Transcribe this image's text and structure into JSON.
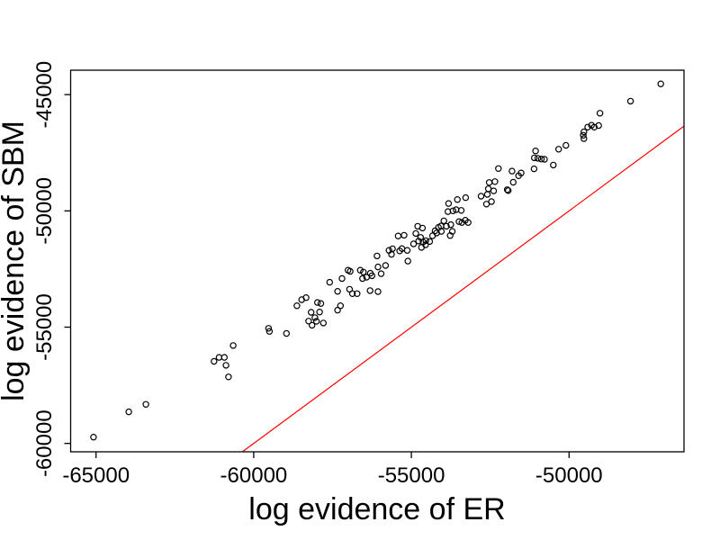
{
  "figure": {
    "background": "#ffffff",
    "axis_color": "#000000",
    "text_color": "#000000"
  },
  "chart_data": {
    "type": "scatter",
    "title": "",
    "xlabel": "log evidence of ER",
    "ylabel": "log evidence of SBM",
    "xlim": [
      -65805,
      -46355
    ],
    "ylim": [
      -60360,
      -43950
    ],
    "x_ticks": [
      -65000,
      -60000,
      -55000,
      -50000
    ],
    "x_tick_labels": [
      "-65000",
      "-60000",
      "-55000",
      "-50000"
    ],
    "y_ticks": [
      -60000,
      -55000,
      -50000,
      -45000
    ],
    "y_tick_labels": [
      "-60000",
      "-55000",
      "-50000",
      "-45000"
    ],
    "grid": false,
    "legend": null,
    "marker": {
      "shape": "open-circle",
      "stroke": "#000000"
    },
    "reference_line": {
      "equation": "y = x",
      "color": "#FF0000"
    },
    "points": [
      [
        -65080,
        -59730
      ],
      [
        -63960,
        -58640
      ],
      [
        -63420,
        -58320
      ],
      [
        -61260,
        -56470
      ],
      [
        -61100,
        -56300
      ],
      [
        -60930,
        -56300
      ],
      [
        -60880,
        -56640
      ],
      [
        -60800,
        -57140
      ],
      [
        -60650,
        -55790
      ],
      [
        -59530,
        -55050
      ],
      [
        -59500,
        -55180
      ],
      [
        -58960,
        -55270
      ],
      [
        -58630,
        -54080
      ],
      [
        -58480,
        -53820
      ],
      [
        -58340,
        -53730
      ],
      [
        -57980,
        -53940
      ],
      [
        -57870,
        -53980
      ],
      [
        -58180,
        -54360
      ],
      [
        -57910,
        -54350
      ],
      [
        -58060,
        -54590
      ],
      [
        -58260,
        -54740
      ],
      [
        -58010,
        -54750
      ],
      [
        -57790,
        -54820
      ],
      [
        -58150,
        -54920
      ],
      [
        -57590,
        -53070
      ],
      [
        -57340,
        -53460
      ],
      [
        -57200,
        -52910
      ],
      [
        -57340,
        -54270
      ],
      [
        -57250,
        -54080
      ],
      [
        -57010,
        -52550
      ],
      [
        -56940,
        -52600
      ],
      [
        -56870,
        -53560
      ],
      [
        -56720,
        -53560
      ],
      [
        -56620,
        -52550
      ],
      [
        -56520,
        -52630
      ],
      [
        -56550,
        -52910
      ],
      [
        -56420,
        -52850
      ],
      [
        -56300,
        -52680
      ],
      [
        -56250,
        -52790
      ],
      [
        -56310,
        -53430
      ],
      [
        -56060,
        -53470
      ],
      [
        -56960,
        -53370
      ],
      [
        -56090,
        -51940
      ],
      [
        -56060,
        -52410
      ],
      [
        -55960,
        -52700
      ],
      [
        -55820,
        -52350
      ],
      [
        -55710,
        -51700
      ],
      [
        -55600,
        -51630
      ],
      [
        -55630,
        -51870
      ],
      [
        -55420,
        -51080
      ],
      [
        -55230,
        -51050
      ],
      [
        -55370,
        -51720
      ],
      [
        -55300,
        -51620
      ],
      [
        -55130,
        -51700
      ],
      [
        -55110,
        -52160
      ],
      [
        -54930,
        -51420
      ],
      [
        -54860,
        -50970
      ],
      [
        -54800,
        -50660
      ],
      [
        -54650,
        -50740
      ],
      [
        -54770,
        -51300
      ],
      [
        -54710,
        -51140
      ],
      [
        -54630,
        -51340
      ],
      [
        -54540,
        -51280
      ],
      [
        -54420,
        -51320
      ],
      [
        -54550,
        -51460
      ],
      [
        -54680,
        -51570
      ],
      [
        -54330,
        -51070
      ],
      [
        -54250,
        -50860
      ],
      [
        -54200,
        -50950
      ],
      [
        -54140,
        -50710
      ],
      [
        -54060,
        -50650
      ],
      [
        -54050,
        -50880
      ],
      [
        -53970,
        -50430
      ],
      [
        -53890,
        -50660
      ],
      [
        -53820,
        -49680
      ],
      [
        -53840,
        -50030
      ],
      [
        -53680,
        -50000
      ],
      [
        -53580,
        -49950
      ],
      [
        -53420,
        -49980
      ],
      [
        -53750,
        -50590
      ],
      [
        -53490,
        -50460
      ],
      [
        -53400,
        -50500
      ],
      [
        -53290,
        -50400
      ],
      [
        -53200,
        -50500
      ],
      [
        -53770,
        -51060
      ],
      [
        -53700,
        -50880
      ],
      [
        -53540,
        -49510
      ],
      [
        -53280,
        -49430
      ],
      [
        -52790,
        -49370
      ],
      [
        -52590,
        -49290
      ],
      [
        -52620,
        -49710
      ],
      [
        -52460,
        -49600
      ],
      [
        -52560,
        -49050
      ],
      [
        -52390,
        -49140
      ],
      [
        -52530,
        -48780
      ],
      [
        -52350,
        -48740
      ],
      [
        -52240,
        -48180
      ],
      [
        -51960,
        -49090
      ],
      [
        -51930,
        -49130
      ],
      [
        -51810,
        -48290
      ],
      [
        -51770,
        -48770
      ],
      [
        -51600,
        -48490
      ],
      [
        -51520,
        -48370
      ],
      [
        -51110,
        -48190
      ],
      [
        -51100,
        -47720
      ],
      [
        -50990,
        -47740
      ],
      [
        -50880,
        -47770
      ],
      [
        -50780,
        -47780
      ],
      [
        -51060,
        -47420
      ],
      [
        -50500,
        -48030
      ],
      [
        -50330,
        -47350
      ],
      [
        -50100,
        -47180
      ],
      [
        -49550,
        -46750
      ],
      [
        -49530,
        -46600
      ],
      [
        -49530,
        -46890
      ],
      [
        -49410,
        -46400
      ],
      [
        -49290,
        -46320
      ],
      [
        -49200,
        -46400
      ],
      [
        -49060,
        -46330
      ],
      [
        -49020,
        -45800
      ],
      [
        -48050,
        -45280
      ],
      [
        -47090,
        -44540
      ]
    ]
  }
}
